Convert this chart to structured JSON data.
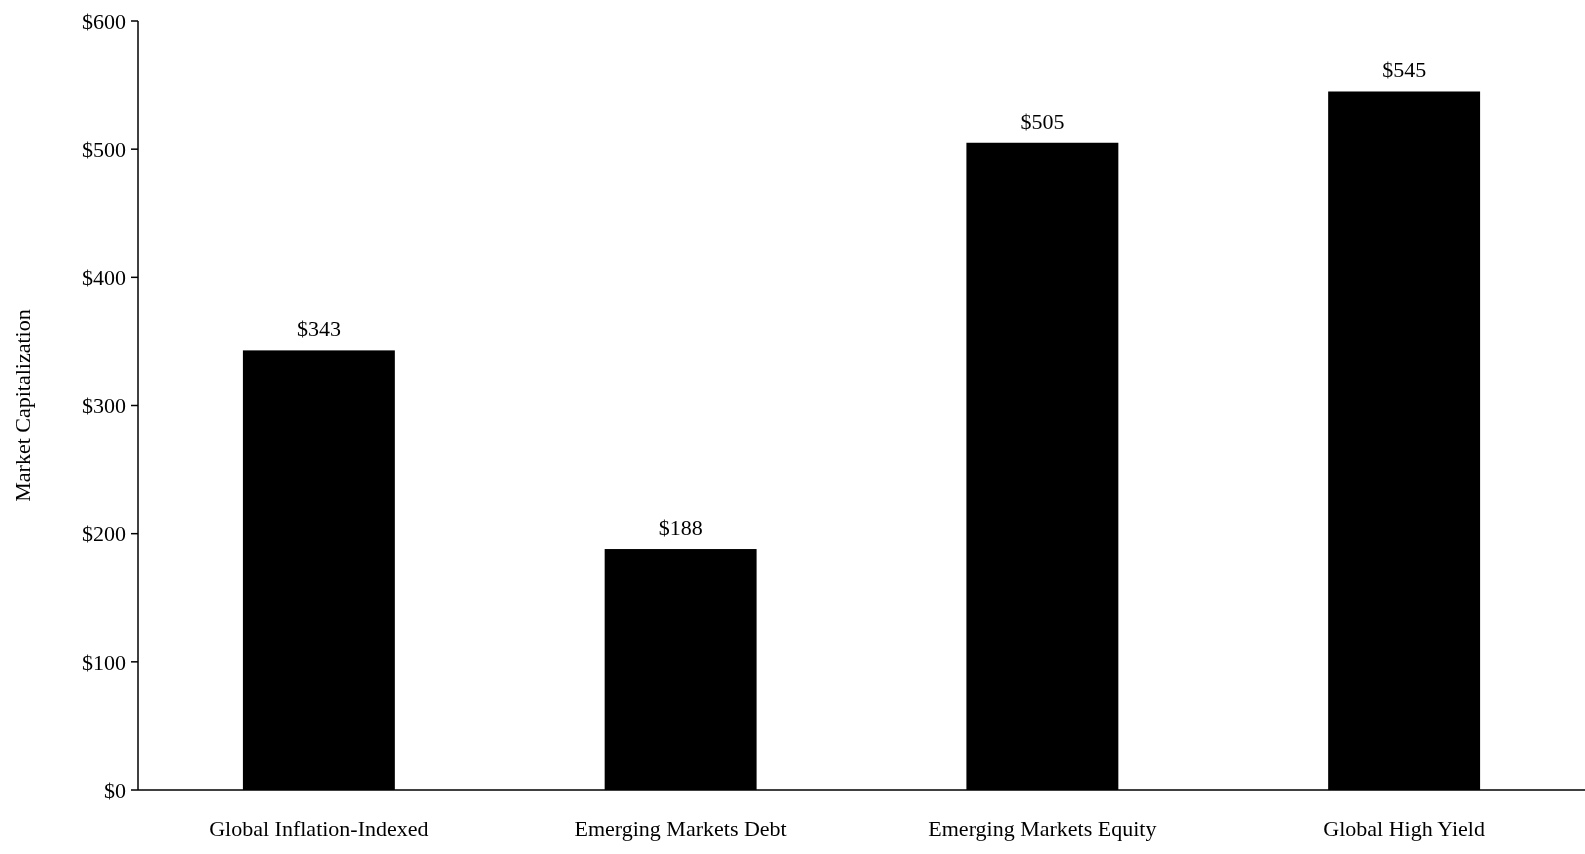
{
  "chart_data": {
    "type": "bar",
    "ylabel": "Market Capitalization",
    "categories": [
      "Global Inflation-Indexed",
      "Emerging Markets Debt",
      "Emerging Markets Equity",
      "Global High Yield"
    ],
    "values": [
      343,
      188,
      505,
      545
    ],
    "value_labels": [
      "$343",
      "$188",
      "$505",
      "$545"
    ],
    "color": "#000000",
    "ylim": [
      0,
      600
    ],
    "yticks": [
      {
        "value": 0,
        "label": "$0"
      },
      {
        "value": 100,
        "label": "$100"
      },
      {
        "value": 200,
        "label": "$200"
      },
      {
        "value": 300,
        "label": "$300"
      },
      {
        "value": 400,
        "label": "$400"
      },
      {
        "value": 500,
        "label": "$500"
      },
      {
        "value": 600,
        "label": "$600"
      }
    ],
    "grid": false
  }
}
